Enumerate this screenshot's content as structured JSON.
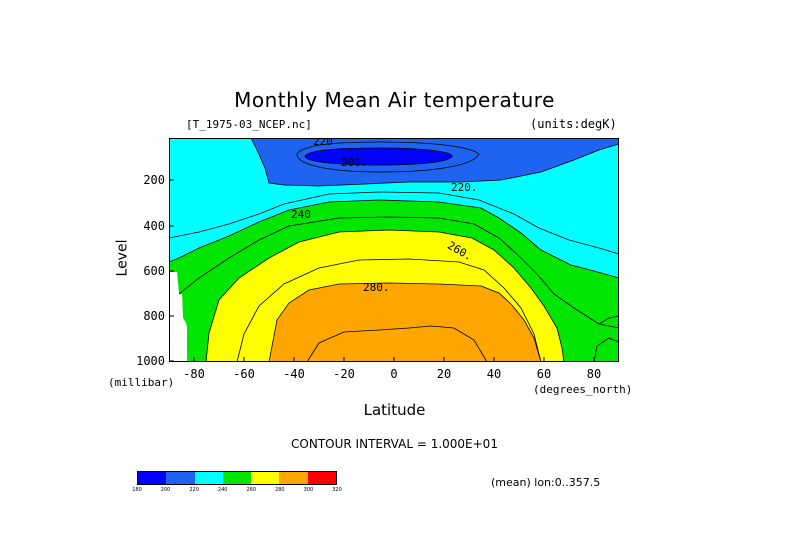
{
  "chart_data": {
    "type": "contour",
    "title": "Monthly Mean Air temperature",
    "source_file": "[T_1975-03_NCEP.nc]",
    "units_label": "(units:degK)",
    "xlabel": "Latitude",
    "xlabel_units": "(degrees_north)",
    "ylabel": "Level",
    "ylabel_units": "(millibar)",
    "x_ticks": [
      "-80",
      "-60",
      "-40",
      "-20",
      "0",
      "20",
      "40",
      "60",
      "80"
    ],
    "x_range": [
      -90,
      90
    ],
    "y_ticks": [
      "200",
      "400",
      "600",
      "800",
      "1000"
    ],
    "y_range": [
      1000,
      10
    ],
    "contour_interval_text": "CONTOUR INTERVAL = 1.000E+01",
    "mean_note": "(mean) lon:0..357.5",
    "contour_labels": [
      "220",
      "200.",
      "220.",
      "240",
      "260.",
      "280."
    ],
    "colorbar": {
      "levels": [
        "180",
        "200",
        "220",
        "240",
        "260",
        "280",
        "300",
        "320"
      ],
      "colors": [
        "#0000ff",
        "#1e64f0",
        "#00ffff",
        "#00e600",
        "#ffff00",
        "#ffa500",
        "#ff0000"
      ]
    },
    "bands": [
      {
        "range": "200-220",
        "color": "#1e64f0"
      },
      {
        "range": "180-200",
        "color": "#0000ff"
      },
      {
        "range": "220-240",
        "color": "#00ffff"
      },
      {
        "range": "240-260",
        "color": "#00e600"
      },
      {
        "range": "260-280",
        "color": "#ffff00"
      },
      {
        "range": "280-300",
        "color": "#ffa500"
      }
    ],
    "background_color": "#ffffff"
  }
}
